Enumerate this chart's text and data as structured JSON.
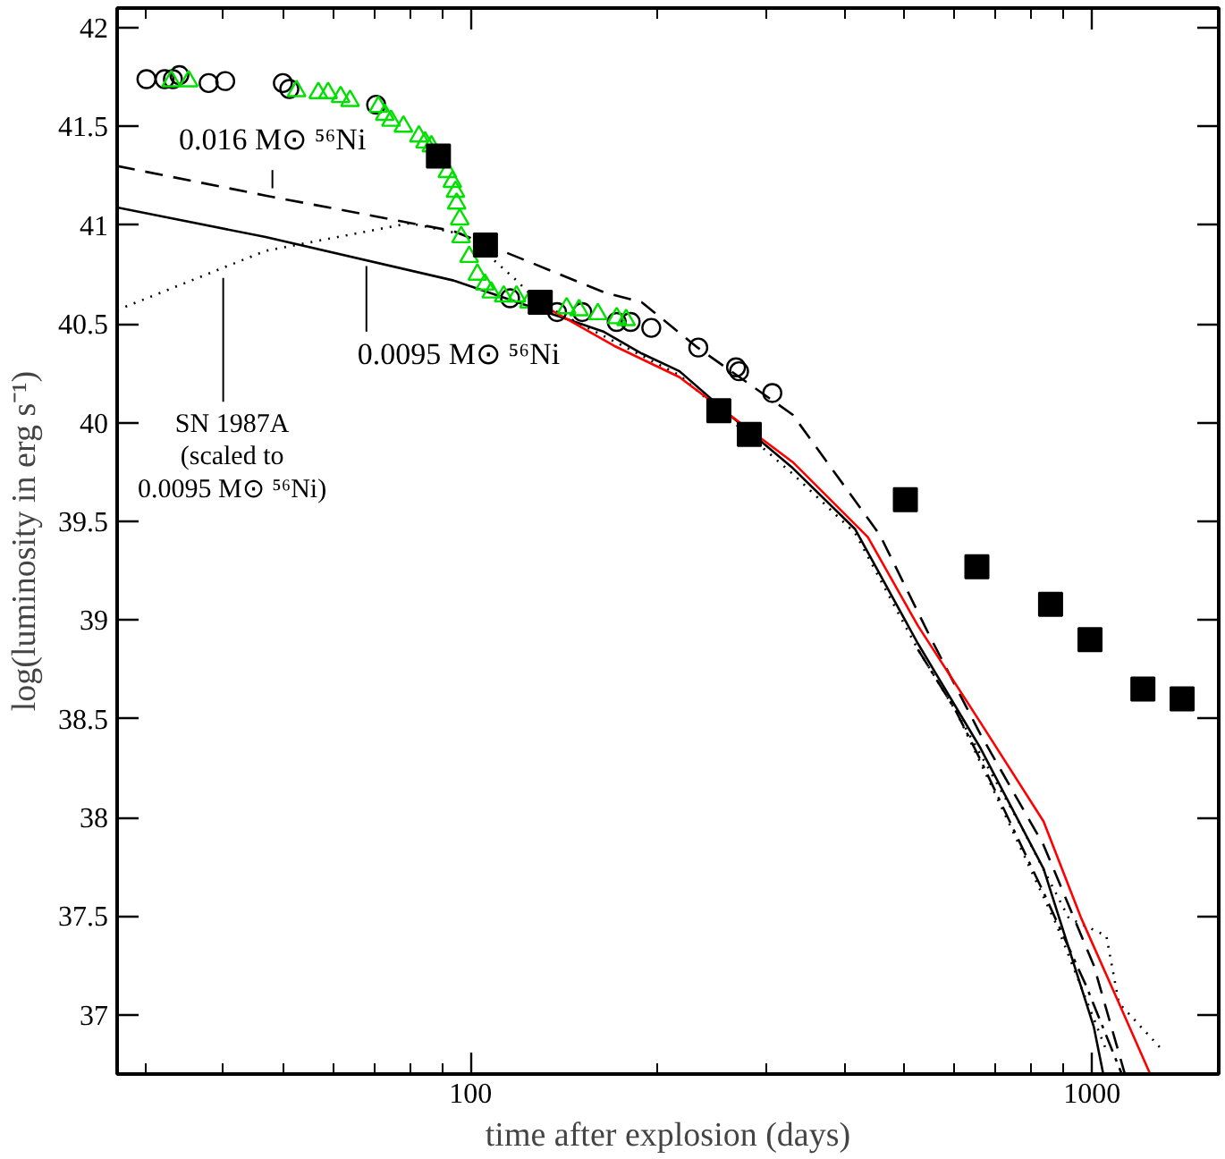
{
  "chart_data": {
    "type": "scatter",
    "xlabel": "time after explosion (days)",
    "ylabel": "log(luminosity in erg s⁻¹)",
    "log": "x",
    "grid": false,
    "xlim": [
      27,
      1600
    ],
    "ylim": [
      36.7,
      42.1
    ],
    "xticks": [
      {
        "value": 30,
        "label": null
      },
      {
        "value": 40,
        "label": null
      },
      {
        "value": 50,
        "label": null
      },
      {
        "value": 60,
        "label": null
      },
      {
        "value": 70,
        "label": null
      },
      {
        "value": 80,
        "label": null
      },
      {
        "value": 90,
        "label": null
      },
      100,
      {
        "value": 200,
        "label": null
      },
      {
        "value": 300,
        "label": null
      },
      {
        "value": 400,
        "label": null
      },
      {
        "value": 500,
        "label": null
      },
      {
        "value": 600,
        "label": null
      },
      {
        "value": 700,
        "label": null
      },
      {
        "value": 800,
        "label": null
      },
      {
        "value": 900,
        "label": null
      },
      1000
    ],
    "yticks": [
      37,
      37.5,
      38,
      38.5,
      39,
      39.5,
      40,
      40.5,
      41,
      41.5,
      42
    ],
    "annotations": [
      {
        "text": "0.016 M⊙ ⁵⁶Ni",
        "x": 48,
        "y": 41.15
      },
      {
        "text": "0.0095 M⊙ ⁵⁶Ni",
        "x": 68,
        "y": 40.83
      },
      {
        "text": "SN 1987A\n(scaled to\n0.0095 M⊙ ⁵⁶Ni)",
        "x": 40,
        "y": 40.77
      }
    ],
    "series": [
      {
        "type": "line",
        "line_style": "solid",
        "color": "#000000",
        "x": [
          27,
          46.8,
          93.9,
          164,
          188.6,
          217,
          261,
          330,
          416,
          525,
          662,
          836,
          1007,
          1043
        ],
        "values": [
          41.09,
          40.94,
          40.72,
          40.46,
          40.35,
          40.26,
          40.04,
          39.77,
          39.46,
          38.88,
          38.35,
          37.74,
          36.94,
          36.7
        ]
      },
      {
        "type": "line",
        "line_style": "dashed",
        "color": "#000000",
        "x": [
          27,
          46.8,
          93.9,
          164,
          188.6,
          232,
          330,
          456,
          550,
          662,
          836,
          1007,
          1130
        ],
        "values": [
          41.3,
          41.15,
          40.97,
          40.66,
          40.61,
          40.38,
          40.04,
          39.43,
          38.91,
          38.42,
          37.86,
          37.25,
          36.7
        ]
      },
      {
        "type": "line",
        "line_style": "dotted",
        "color": "#000000",
        "x": [
          27,
          46.8,
          79.8,
          98.4,
          118.6,
          128.6,
          217,
          330,
          416,
          525,
          604,
          632,
          762,
          918,
          1055,
          1105,
          1300
        ],
        "values": [
          40.57,
          40.87,
          41.01,
          40.95,
          40.72,
          40.61,
          40.24,
          39.74,
          39.44,
          38.85,
          38.54,
          38.43,
          37.98,
          37.49,
          37.4,
          37.06,
          36.82
        ]
      },
      {
        "type": "line",
        "line_style": "dotted",
        "color": "#000000",
        "x": [
          525,
          604,
          694,
          876,
          1055
        ],
        "values": [
          38.85,
          38.54,
          38.14,
          37.46,
          36.82
        ]
      },
      {
        "type": "line",
        "line_style": "dashdot",
        "color": "#000000",
        "x": [
          525,
          604,
          662,
          836,
          978,
          1117
        ],
        "values": [
          38.85,
          38.54,
          38.29,
          37.62,
          37.15,
          36.7
        ]
      },
      {
        "type": "line",
        "line_style": "solid",
        "color": "#ff0000",
        "x": [
          128,
          170,
          217,
          261,
          330,
          436,
          525,
          662,
          836,
          961,
          1105,
          1241
        ],
        "values": [
          40.61,
          40.39,
          40.23,
          40.04,
          39.8,
          39.42,
          38.97,
          38.48,
          37.98,
          37.49,
          37.06,
          36.7
        ]
      },
      {
        "marker": "circle",
        "color": "#000000",
        "x": [
          30.1,
          32.2,
          33.2,
          34.0,
          37.9,
          40.3,
          49.9,
          51.1,
          70.5,
          115.8,
          137.8,
          151.3,
          171.9,
          181,
          195.4,
          232.6,
          267.5,
          270.5,
          306
        ],
        "values": [
          41.74,
          41.74,
          41.74,
          41.76,
          41.72,
          41.73,
          41.72,
          41.69,
          41.61,
          40.63,
          40.56,
          40.56,
          40.51,
          40.51,
          40.48,
          40.38,
          40.28,
          40.26,
          40.15
        ]
      },
      {
        "marker": "triangle",
        "color": "#00e000",
        "x": [
          33.0,
          35.2,
          52.5,
          56.9,
          59.0,
          61.8,
          64.0,
          71.1,
          72.8,
          74.5,
          78.0,
          82.6,
          84.5,
          86.5,
          91.8,
          93.5,
          94.6,
          95.0,
          96.1,
          96.6,
          99.5,
          102.6,
          105.5,
          108,
          113.1,
          118.6,
          124.2,
          142.8,
          149.5,
          160.3,
          171.9,
          178
        ],
        "values": [
          41.73,
          41.73,
          41.68,
          41.67,
          41.67,
          41.65,
          41.63,
          41.6,
          41.56,
          41.53,
          41.5,
          41.45,
          41.42,
          41.4,
          41.27,
          41.22,
          41.17,
          41.11,
          41.03,
          40.94,
          40.84,
          40.75,
          40.7,
          40.66,
          40.64,
          40.64,
          40.61,
          40.58,
          40.57,
          40.55,
          40.53,
          40.52
        ]
      },
      {
        "marker": "square",
        "color": "#000000",
        "x": [
          88.8,
          105.7,
          129.5,
          251,
          281,
          501,
          653,
          858,
          993,
          1208,
          1397
        ],
        "values": [
          41.35,
          40.9,
          40.61,
          40.06,
          39.94,
          39.61,
          39.27,
          39.08,
          38.9,
          38.65,
          38.6
        ]
      }
    ]
  }
}
